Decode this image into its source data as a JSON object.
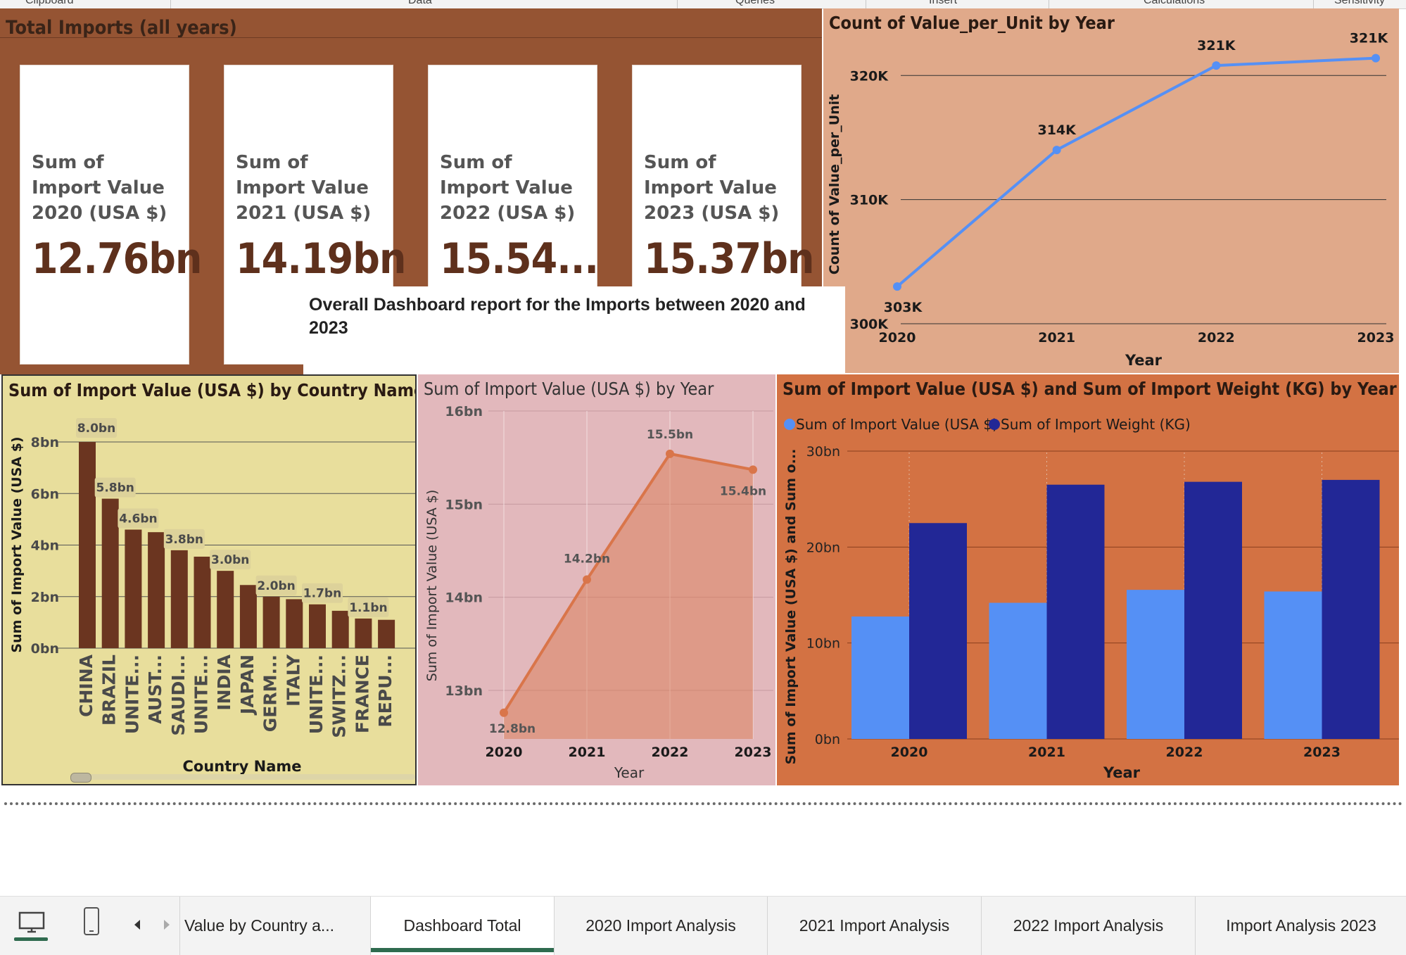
{
  "ribbon": {
    "groups": [
      "Clipboard",
      "Data",
      "Queries",
      "Insert",
      "Calculations",
      "Sensitivity"
    ]
  },
  "total_panel": {
    "title": "Total Imports (all years)",
    "cards": [
      {
        "label": "Sum of Import Value 2020 (USA $)",
        "value": "12.76bn"
      },
      {
        "label": "Sum of Import Value 2021 (USA $)",
        "value": "14.19bn"
      },
      {
        "label": "Sum of Import Value 2022 (USA $)",
        "value": "15.54..."
      },
      {
        "label": "Sum of Import Value 2023 (USA $)",
        "value": "15.37bn"
      }
    ]
  },
  "overall_text": "Overall Dashboard report for the Imports between 2020 and 2023",
  "colors": {
    "total_panel_bg": "#955433",
    "card_value": "#5e301c",
    "count_panel_bg": "#e0a98a",
    "country_panel_bg": "#e8de9c",
    "country_bar": "#6b3520",
    "year_panel_bg": "#e2b8bc",
    "year_line": "#d9754a",
    "combo_panel_bg": "#d37243",
    "value_series": "#5590f5",
    "weight_series": "#222796",
    "active_tab_underline": "#2f6b4f"
  },
  "chart_data": [
    {
      "id": "count-by-year",
      "type": "line",
      "title": "Count of Value_per_Unit by Year",
      "xlabel": "Year",
      "ylabel": "Count of Value_per_Unit",
      "x": [
        "2020",
        "2021",
        "2022",
        "2023"
      ],
      "values": [
        303000,
        314000,
        320800,
        321400
      ],
      "data_labels": [
        "303K",
        "314K",
        "321K",
        "321K"
      ],
      "ylim": [
        300000,
        322000
      ],
      "yticks": [
        300000,
        310000,
        320000
      ],
      "ytick_labels": [
        "300K",
        "310K",
        "320K"
      ],
      "grid": true
    },
    {
      "id": "value-by-country",
      "type": "bar",
      "title": "Sum of Import Value (USA $) by Country Name",
      "xlabel": "Country Name",
      "ylabel": "Sum of Import Value (USA $)",
      "categories": [
        "CHINA",
        "BRAZIL",
        "UNITE...",
        "AUST...",
        "SAUDI...",
        "UNITE...",
        "INDIA",
        "JAPAN",
        "GERM...",
        "ITALY",
        "UNITE...",
        "SWITZ...",
        "FRANCE",
        "REPU..."
      ],
      "values": [
        8.0,
        5.8,
        4.6,
        4.5,
        3.8,
        3.55,
        3.0,
        2.45,
        2.0,
        1.9,
        1.7,
        1.45,
        1.15,
        1.1
      ],
      "data_labels": [
        "8.0bn",
        "5.8bn",
        "4.6bn",
        "",
        "3.8bn",
        "",
        "3.0bn",
        "",
        "2.0bn",
        "",
        "1.7bn",
        "",
        "1.1bn",
        ""
      ],
      "unit": "bn",
      "ylim": [
        0,
        8.5
      ],
      "yticks": [
        0,
        2,
        4,
        6,
        8
      ],
      "ytick_labels": [
        "0bn",
        "2bn",
        "4bn",
        "6bn",
        "8bn"
      ],
      "grid": true
    },
    {
      "id": "value-by-year",
      "type": "area",
      "title": "Sum of Import Value (USA $) by Year",
      "xlabel": "Year",
      "ylabel": "Sum of Import Value (USA $)",
      "x": [
        "2020",
        "2021",
        "2022",
        "2023"
      ],
      "values": [
        12.76,
        14.19,
        15.54,
        15.37
      ],
      "data_labels": [
        "12.8bn",
        "14.2bn",
        "15.5bn",
        "15.4bn"
      ],
      "unit": "bn",
      "ylim": [
        12.5,
        16.0
      ],
      "yticks": [
        13,
        14,
        15,
        16
      ],
      "ytick_labels": [
        "13bn",
        "14bn",
        "15bn",
        "16bn"
      ],
      "grid": true
    },
    {
      "id": "value-and-weight-by-year",
      "type": "bar",
      "title": "Sum of Import Value (USA $) and Sum of Import Weight (KG) by Year",
      "xlabel": "Year",
      "ylabel": "Sum of Import Value (USA $) and Sum o...",
      "categories": [
        "2020",
        "2021",
        "2022",
        "2023"
      ],
      "series": [
        {
          "name": "Sum of Import Value (USA $)",
          "values": [
            12.76,
            14.19,
            15.54,
            15.37
          ],
          "color": "#5590f5"
        },
        {
          "name": "Sum of Import Weight (KG)",
          "values": [
            22.5,
            26.5,
            26.8,
            27.0
          ],
          "color": "#222796"
        }
      ],
      "unit": "bn",
      "ylim": [
        0,
        30
      ],
      "yticks": [
        0,
        10,
        20,
        30
      ],
      "ytick_labels": [
        "0bn",
        "10bn",
        "20bn",
        "30bn"
      ],
      "legend": "top-left",
      "grid": true
    }
  ],
  "tabs": {
    "items": [
      {
        "label": "Value by Country a..."
      },
      {
        "label": "Dashboard Total",
        "active": true
      },
      {
        "label": "2020 Import Analysis"
      },
      {
        "label": "2021 Import Analysis"
      },
      {
        "label": "2022 Import Analysis"
      },
      {
        "label": "Import Analysis 2023"
      }
    ],
    "icons": [
      "desktop-icon",
      "phone-icon",
      "prev-page-icon",
      "next-page-icon"
    ]
  }
}
